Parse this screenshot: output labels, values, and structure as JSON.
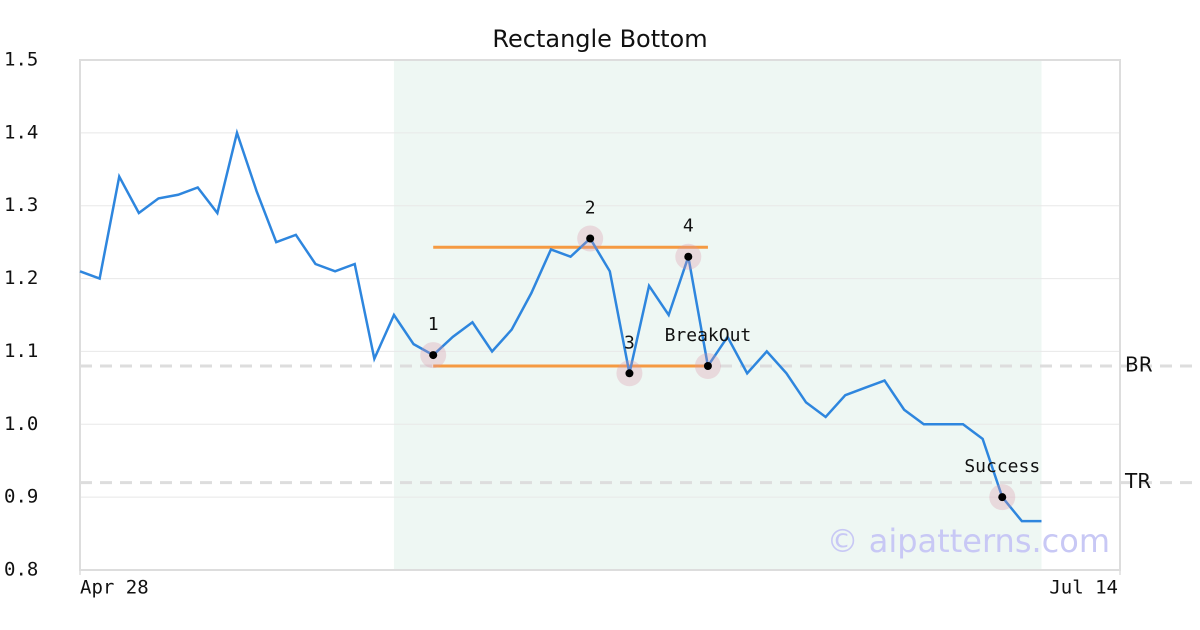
{
  "chart_data": {
    "type": "line",
    "title": "Rectangle Bottom",
    "color": "#2e86de",
    "values": [
      1.21,
      1.2,
      1.34,
      1.29,
      1.31,
      1.315,
      1.325,
      1.29,
      1.4,
      1.32,
      1.25,
      1.26,
      1.22,
      1.21,
      1.22,
      1.09,
      1.15,
      1.11,
      1.095,
      1.12,
      1.14,
      1.1,
      1.13,
      1.18,
      1.24,
      1.23,
      1.255,
      1.21,
      1.07,
      1.19,
      1.15,
      1.23,
      1.08,
      1.12,
      1.07,
      1.1,
      1.07,
      1.03,
      1.01,
      1.04,
      1.05,
      1.06,
      1.02,
      1.0,
      1.0,
      1.0,
      0.98,
      0.9,
      0.867,
      0.867
    ],
    "xlim": [
      0,
      53
    ],
    "xticks": [
      {
        "value": 0,
        "label": "Apr 28"
      },
      {
        "value": 53,
        "label": "Jul 14"
      }
    ],
    "ylim": [
      0.8,
      1.5
    ],
    "yticks": [
      0.8,
      0.9,
      {
        "value": 1,
        "label": "1.0"
      },
      1.1,
      1.2,
      1.3,
      1.4,
      1.5
    ],
    "grid": true,
    "highlight": {
      "start": 16,
      "end": 49,
      "color": "#eef7f3"
    },
    "rectangle": {
      "top": 1.243,
      "bottom": 1.08,
      "start": 18,
      "end": 32,
      "color": "#f59a42"
    },
    "hlines": [
      {
        "name": "BR",
        "value": 1.08
      },
      {
        "name": "TR",
        "value": 0.92
      }
    ],
    "annotations": [
      {
        "label": "1",
        "x": 18,
        "y": 1.095
      },
      {
        "label": "2",
        "x": 26,
        "y": 1.255
      },
      {
        "label": "3",
        "x": 28,
        "y": 1.07
      },
      {
        "label": "4",
        "x": 31,
        "y": 1.23
      },
      {
        "label": "BreakOut",
        "x": 32,
        "y": 1.08
      },
      {
        "label": "Success",
        "x": 47,
        "y": 0.9
      }
    ],
    "watermark": "© aipatterns.com"
  }
}
